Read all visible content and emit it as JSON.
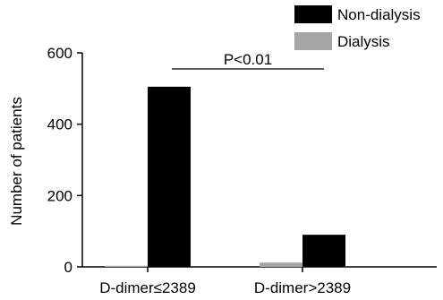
{
  "chart_data": {
    "type": "bar",
    "categories": [
      "D-dimer≤2389",
      "D-dimer>2389"
    ],
    "series": [
      {
        "name": "Dialysis",
        "values": [
          3,
          12
        ],
        "color": "#a6a6a6"
      },
      {
        "name": "Non-dialysis",
        "values": [
          505,
          90
        ],
        "color": "#000000"
      }
    ],
    "ylabel": "Number of patients",
    "ylim": [
      0,
      600
    ],
    "yticks": [
      0,
      200,
      400,
      600
    ],
    "legend_position": "top-right",
    "grid": false,
    "annotation": "P<0.01"
  }
}
